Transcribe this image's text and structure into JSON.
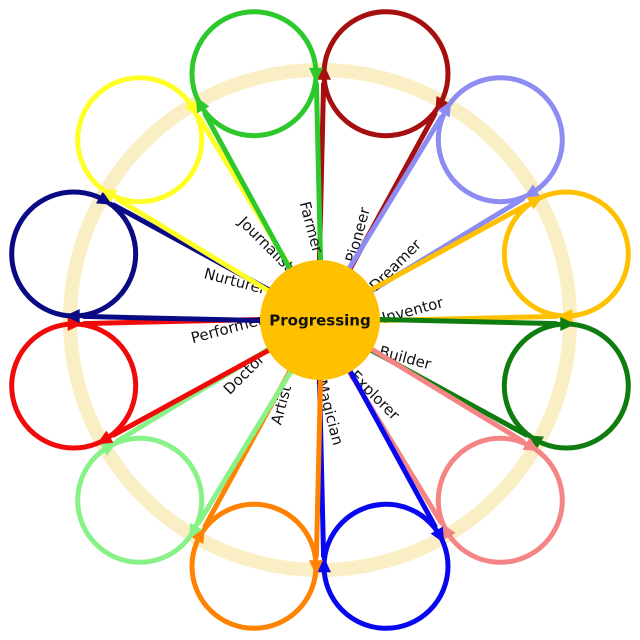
{
  "center": {
    "label": "Progressing",
    "color": "#FFC000"
  },
  "halo_color": "#F8E8B0",
  "petals": [
    {
      "label": "Pioneer",
      "color": "#A50F0F"
    },
    {
      "label": "Dreamer",
      "color": "#8C8CF2"
    },
    {
      "label": "Inventor",
      "color": "#FFC000"
    },
    {
      "label": "Builder",
      "color": "#0F7C0F"
    },
    {
      "label": "Explorer",
      "color": "#F58585"
    },
    {
      "label": "Magician",
      "color": "#0808F0"
    },
    {
      "label": "Artist",
      "color": "#FF8200"
    },
    {
      "label": "Doctor",
      "color": "#88F288"
    },
    {
      "label": "Performer",
      "color": "#F00A0A"
    },
    {
      "label": "Nurturer",
      "color": "#0A0A85"
    },
    {
      "label": "Journalist",
      "color": "#FFFF26"
    },
    {
      "label": "Farmer",
      "color": "#2CC82C"
    }
  ]
}
